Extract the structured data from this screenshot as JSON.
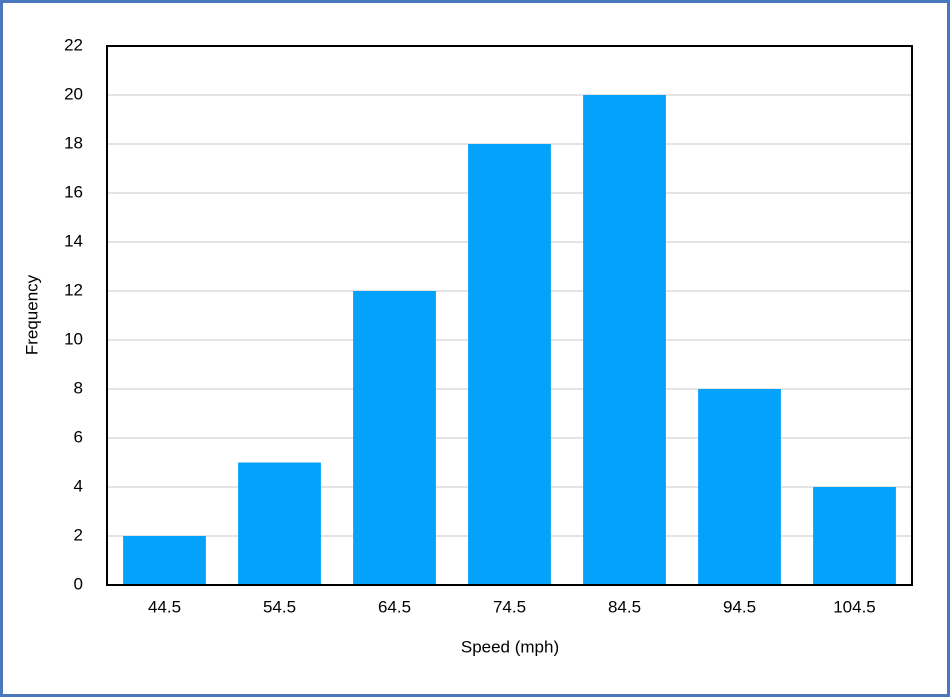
{
  "chart_data": {
    "type": "bar",
    "x_label": "Speed (mph)",
    "y_label": "Frequency",
    "categories": [
      "44.5",
      "54.5",
      "64.5",
      "74.5",
      "84.5",
      "94.5",
      "104.5"
    ],
    "values": [
      2,
      5,
      12,
      18,
      20,
      8,
      4
    ],
    "color": "#05a2fb",
    "ylim": [
      0,
      22
    ],
    "yticks": [
      0,
      2,
      4,
      6,
      8,
      10,
      12,
      14,
      16,
      18,
      20,
      22
    ],
    "grid": true
  }
}
